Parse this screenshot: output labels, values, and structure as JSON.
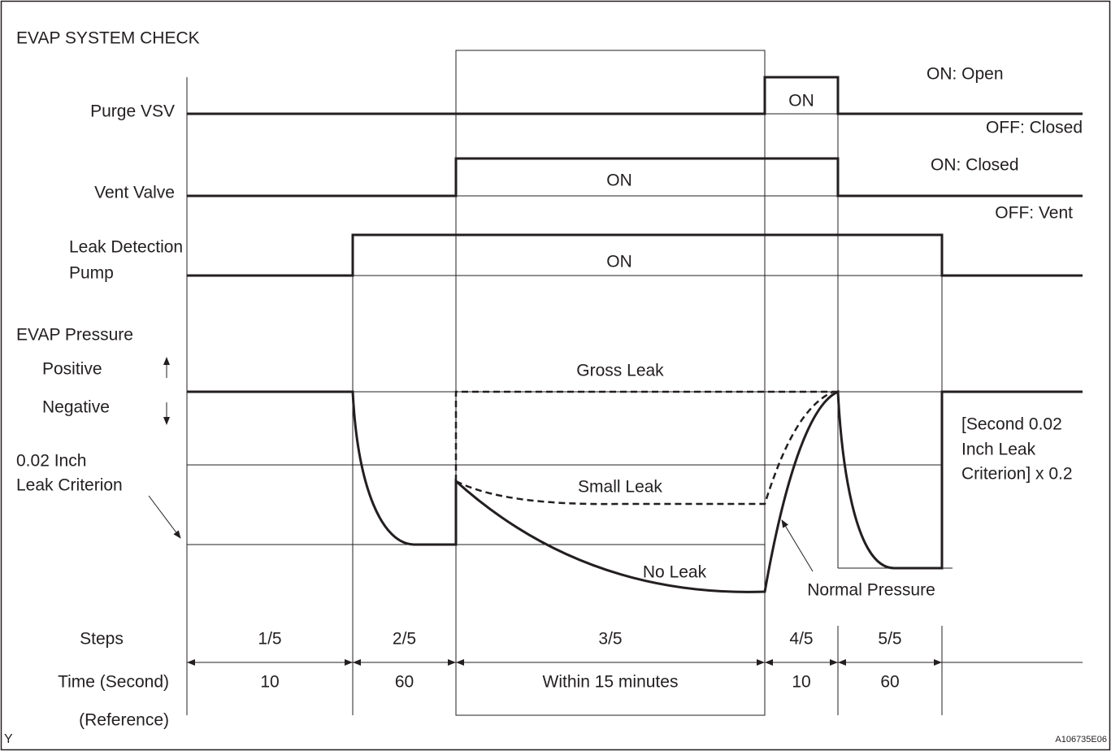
{
  "title": "EVAP SYSTEM CHECK",
  "signals": {
    "purge_vsv": {
      "label": "Purge VSV",
      "on_text": "ON",
      "on_state": "ON: Open",
      "off_state": "OFF: Closed"
    },
    "vent_valve": {
      "label": "Vent Valve",
      "on_text": "ON",
      "on_state": "ON: Closed",
      "off_state": "OFF: Vent"
    },
    "pump": {
      "label_lines": [
        "Leak Detection",
        "Pump"
      ],
      "on_text": "ON"
    }
  },
  "pressure": {
    "label": "EVAP Pressure",
    "positive": "Positive",
    "negative": "Negative",
    "criterion_lines": [
      "0.02 Inch",
      "Leak Criterion"
    ],
    "gross_leak": "Gross Leak",
    "small_leak": "Small Leak",
    "no_leak": "No Leak",
    "normal_pressure": "Normal Pressure",
    "second_criterion_lines": [
      "[Second 0.02",
      "Inch Leak",
      "Criterion] x 0.2"
    ]
  },
  "steps": {
    "label": "Steps",
    "items": [
      "1/5",
      "2/5",
      "3/5",
      "4/5",
      "5/5"
    ]
  },
  "time": {
    "label": "Time (Second)",
    "sublabel": "(Reference)",
    "items": [
      "10",
      "60",
      "Within 15 minutes",
      "10",
      "60"
    ]
  },
  "footer": {
    "left": "Y",
    "right": "A106735E06"
  }
}
